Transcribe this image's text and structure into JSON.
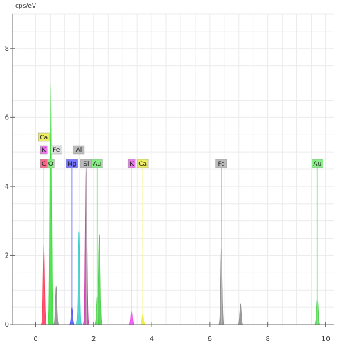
{
  "chart_data": {
    "type": "line",
    "title": "",
    "xlabel": "",
    "ylabel": "cps/eV",
    "xlim": [
      -0.8,
      10.3
    ],
    "ylim": [
      0,
      9
    ],
    "x_ticks": [
      "0",
      "2",
      "4",
      "6",
      "8",
      "10"
    ],
    "y_ticks": [
      "0",
      "2",
      "4",
      "6",
      "8"
    ],
    "grid": true,
    "colors": {
      "C": "#ff3355",
      "O": "#33dd33",
      "Fe": "#888888",
      "Mg": "#4444ee",
      "Al": "#33cccc",
      "Si": "#cc33aa",
      "Au": "#44cc44",
      "K": "#ee44ee",
      "Ca": "#eeee22"
    },
    "peaks": [
      {
        "element": "C",
        "x": 0.28,
        "y": 2.3
      },
      {
        "element": "O",
        "x": 0.52,
        "y": 7.0
      },
      {
        "element": "Fe",
        "x": 0.71,
        "y": 1.1
      },
      {
        "element": "Mg",
        "x": 1.25,
        "y": 0.5
      },
      {
        "element": "Al",
        "x": 1.49,
        "y": 2.7
      },
      {
        "element": "Si",
        "x": 1.74,
        "y": 4.5
      },
      {
        "element": "Au",
        "x": 2.12,
        "y": 0.8
      },
      {
        "element": "Au",
        "x": 2.2,
        "y": 2.6
      },
      {
        "element": "K",
        "x": 3.31,
        "y": 0.4
      },
      {
        "element": "Ca",
        "x": 3.69,
        "y": 0.3
      },
      {
        "element": "Fe",
        "x": 6.4,
        "y": 2.2
      },
      {
        "element": "Fe",
        "x": 7.06,
        "y": 0.6
      },
      {
        "element": "Au",
        "x": 9.71,
        "y": 0.7
      }
    ],
    "markers": [
      {
        "label": "C",
        "x": 0.28,
        "row": 0,
        "color": "#ff6688"
      },
      {
        "label": "O",
        "x": 0.52,
        "row": 0,
        "color": "#88ee88"
      },
      {
        "label": "K",
        "x": 0.28,
        "row": 1,
        "color": "#ee77ee"
      },
      {
        "label": "Fe",
        "x": 0.71,
        "row": 1,
        "color": "#dddddd"
      },
      {
        "label": "Ca",
        "x": 0.28,
        "row": 2,
        "color": "#eeee66"
      },
      {
        "label": "Mg",
        "x": 1.25,
        "row": 0,
        "color": "#7777ff"
      },
      {
        "label": "Si",
        "x": 1.74,
        "row": 0,
        "color": "#bbbbbb"
      },
      {
        "label": "Al",
        "x": 1.49,
        "row": 1,
        "color": "#bbbbbb"
      },
      {
        "label": "Au",
        "x": 2.12,
        "row": 0,
        "color": "#88ee88"
      },
      {
        "label": "K",
        "x": 3.31,
        "row": 0,
        "color": "#ee77ee"
      },
      {
        "label": "Ca",
        "x": 3.69,
        "row": 0,
        "color": "#eeee66"
      },
      {
        "label": "Fe",
        "x": 6.4,
        "row": 0,
        "color": "#bbbbbb"
      },
      {
        "label": "Au",
        "x": 9.71,
        "row": 0,
        "color": "#88ee88"
      }
    ]
  }
}
